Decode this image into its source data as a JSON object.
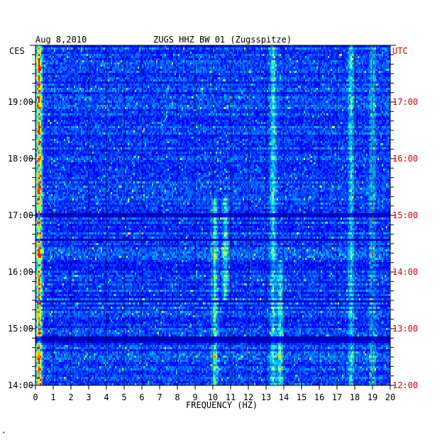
{
  "chart_data": {
    "type": "heatmap",
    "title": "ZUGS HHZ BW 01 (Zugsspitze)",
    "date": "Aug 8,2010",
    "xlabel": "FREQUENCY (HZ)",
    "xlim": [
      0,
      20
    ],
    "x_ticks": [
      "0",
      "1",
      "2",
      "3",
      "4",
      "5",
      "6",
      "7",
      "8",
      "9",
      "10",
      "11",
      "12",
      "13",
      "14",
      "15",
      "16",
      "17",
      "18",
      "19",
      "20"
    ],
    "left_axis_label": "CES",
    "right_axis_label": "UTC",
    "left_time_ticks": [
      "19:00",
      "18:00",
      "17:00",
      "16:00",
      "15:00",
      "14:00"
    ],
    "right_time_ticks": [
      "17:00",
      "16:00",
      "15:00",
      "14:00",
      "13:00",
      "12:00"
    ],
    "time_range_utc": [
      "12:00",
      "18:00"
    ],
    "colormap": [
      "#00007f",
      "#0000ff",
      "#0070ff",
      "#00d8ff",
      "#7fff7f",
      "#ffff00",
      "#ff8000",
      "#ff0000"
    ],
    "dark_bands_utc": [
      [
        14.55,
        14.6
      ],
      [
        14.95,
        15.05
      ],
      [
        16.0,
        16.02
      ],
      [
        12.75,
        12.85
      ],
      [
        13.45,
        13.5
      ]
    ],
    "persistent_bands_hz": [
      {
        "center": 0.2,
        "strength": 0.9
      },
      {
        "center": 10.1,
        "strength": 0.45,
        "utc": [
          12.0,
          15.3
        ]
      },
      {
        "center": 10.7,
        "strength": 0.4,
        "utc": [
          13.5,
          15.3
        ]
      },
      {
        "center": 13.4,
        "strength": 0.35
      },
      {
        "center": 13.8,
        "strength": 0.4,
        "utc": [
          12.0,
          14.2
        ]
      },
      {
        "center": 17.8,
        "strength": 0.3
      },
      {
        "center": 19.0,
        "strength": 0.25
      }
    ]
  },
  "footer_mark": "*"
}
